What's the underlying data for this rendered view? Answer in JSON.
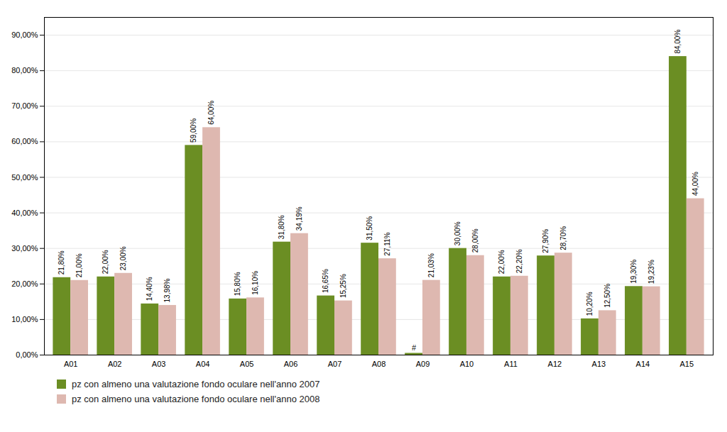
{
  "chart_data": {
    "type": "bar",
    "categories": [
      "A01",
      "A02",
      "A03",
      "A04",
      "A05",
      "A06",
      "A07",
      "A08",
      "A09",
      "A10",
      "A11",
      "A12",
      "A13",
      "A14",
      "A15"
    ],
    "series": [
      {
        "name": "pz con almeno una valutazione fondo oculare nell'anno 2007",
        "color": "#6b8e23",
        "values": [
          21.8,
          22.0,
          14.4,
          59.0,
          15.8,
          31.8,
          16.65,
          31.5,
          0.5,
          30.0,
          22.0,
          27.9,
          10.2,
          19.3,
          84.0
        ],
        "value_labels": [
          "21,80%",
          "22,00%",
          "14,40%",
          "59,00%",
          "15,80%",
          "31,80%",
          "16,65%",
          "31,50%",
          null,
          "30,00%",
          "22,00%",
          "27,90%",
          "10,20%",
          "19,30%",
          "84,00%"
        ]
      },
      {
        "name": "pz con almeno una valutazione fondo oculare nell'anno 2008",
        "color": "#deb8b0",
        "values": [
          21.0,
          23.0,
          13.98,
          64.0,
          16.1,
          34.19,
          15.25,
          27.11,
          21.03,
          28.0,
          22.2,
          28.7,
          12.5,
          19.23,
          44.0
        ],
        "value_labels": [
          "21,00%",
          "23,00%",
          "13,98%",
          "64,00%",
          "16,10%",
          "34,19%",
          "15,25%",
          "27,11%",
          "21,03%",
          "28,00%",
          "22,20%",
          "28,70%",
          "12,50%",
          "19,23%",
          "44,00%"
        ]
      }
    ],
    "annotations": [
      {
        "text": "#",
        "x": "A09",
        "y": 0.5,
        "series": "pz con almeno una valutazione fondo oculare nell'anno 2007"
      }
    ],
    "ylim": [
      0,
      95
    ],
    "yticks": [
      {
        "value": 0,
        "label": "0,00%"
      },
      {
        "value": 10,
        "label": "10,00%"
      },
      {
        "value": 20,
        "label": "20,00%"
      },
      {
        "value": 30,
        "label": "30,00%"
      },
      {
        "value": 40,
        "label": "40,00%"
      },
      {
        "value": 50,
        "label": "50,00%"
      },
      {
        "value": 60,
        "label": "60,00%"
      },
      {
        "value": 70,
        "label": "70,00%"
      },
      {
        "value": 80,
        "label": "80,00%"
      },
      {
        "value": 90,
        "label": "90,00%"
      }
    ],
    "grid": true,
    "data_labels": true,
    "legend": "bottom"
  }
}
